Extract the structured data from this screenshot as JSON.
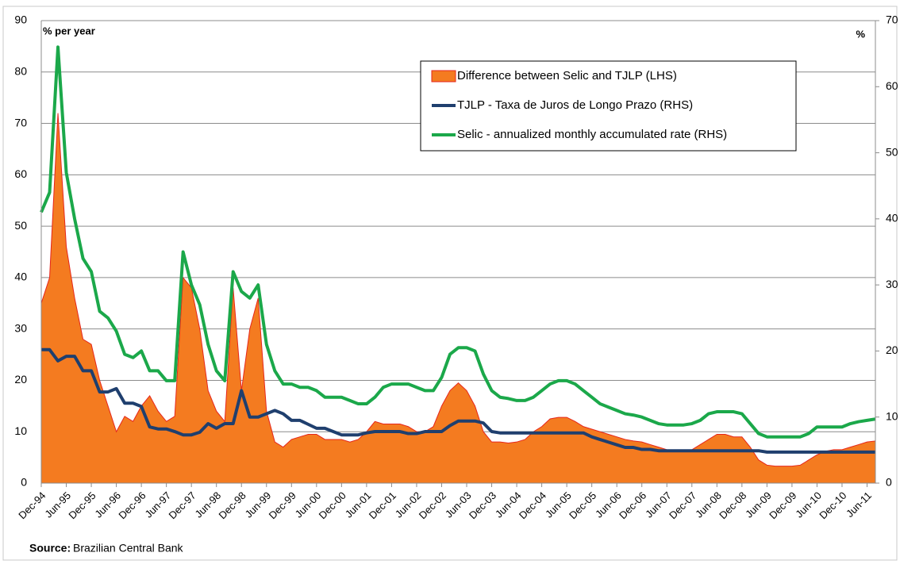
{
  "chart_data": {
    "type": "line",
    "left_axis_label": "% per year",
    "right_axis_label": "%",
    "source_label": "Source:",
    "source": "Brazilian Central Bank",
    "categories": [
      "Dec-94",
      null,
      null,
      "Jun-95",
      null,
      null,
      "Dec-95",
      null,
      null,
      "Jun-96",
      null,
      null,
      "Dec-96",
      null,
      null,
      "Jun-97",
      null,
      null,
      "Dec-97",
      null,
      null,
      "Jun-98",
      null,
      null,
      "Dec-98",
      null,
      null,
      "Jun-99",
      null,
      null,
      "Dec-99",
      null,
      null,
      "Jun-00",
      null,
      null,
      "Dec-00",
      null,
      null,
      "Jun-01",
      null,
      null,
      "Dec-01",
      null,
      null,
      "Jun-02",
      null,
      null,
      "Dec-02",
      null,
      null,
      "Jun-03",
      null,
      null,
      "Dec-03",
      null,
      null,
      "Jun-04",
      null,
      null,
      "Dec-04",
      null,
      null,
      "Jun-05",
      null,
      null,
      "Dec-05",
      null,
      null,
      "Jun-06",
      null,
      null,
      "Dec-06",
      null,
      null,
      "Jun-07",
      null,
      null,
      "Dec-07",
      null,
      null,
      "Jun-08",
      null,
      null,
      "Dec-08",
      null,
      null,
      "Jun-09",
      null,
      null,
      "Dec-09",
      null,
      null,
      "Jun-10",
      null,
      null,
      "Dec-10",
      null,
      null,
      "Jun-11",
      null
    ],
    "series": [
      {
        "name": "Difference between Selic and TJLP (LHS)",
        "type": "area",
        "color": "#f47b20",
        "edge": "#e5261c",
        "values": [
          35,
          40,
          72,
          46,
          36,
          28,
          27,
          20,
          15,
          10,
          13,
          12,
          15,
          17,
          14,
          12,
          13,
          40,
          38,
          30,
          18,
          14,
          12,
          38,
          18,
          30,
          36,
          14,
          8,
          7,
          8.5,
          9,
          9.5,
          9.5,
          8.5,
          8.5,
          8.5,
          8,
          8.5,
          10,
          12,
          11.5,
          11.5,
          11.5,
          11,
          10,
          10,
          11,
          15,
          18,
          19.5,
          18,
          15,
          10,
          8,
          8,
          7.8,
          8,
          8.5,
          10,
          11,
          12.5,
          12.8,
          12.8,
          12,
          11,
          10.5,
          10,
          9.5,
          9,
          8.5,
          8.2,
          8,
          7.5,
          7,
          6.5,
          6.2,
          6.2,
          6.5,
          7.5,
          8.5,
          9.5,
          9.5,
          9,
          9,
          7,
          4.5,
          3.5,
          3.3,
          3.3,
          3.3,
          3.5,
          4.5,
          5.5,
          6.2,
          6.5,
          6.5,
          7,
          7.5,
          8,
          8.2
        ]
      },
      {
        "name": "TJLP - Taxa de Juros de Longo Prazo (RHS)",
        "type": "line",
        "axis": "y2",
        "color": "#1f3f6e",
        "values": [
          20.2,
          20.2,
          18.5,
          19.2,
          19.2,
          17,
          17,
          13.8,
          13.8,
          14.3,
          12.1,
          12.1,
          11.6,
          8.5,
          8.2,
          8.2,
          7.8,
          7.3,
          7.3,
          7.7,
          9,
          8.3,
          9,
          9,
          14,
          10,
          10,
          10.5,
          11,
          10.5,
          9.5,
          9.5,
          8.9,
          8.3,
          8.3,
          7.8,
          7.3,
          7.3,
          7.3,
          7.6,
          7.8,
          7.8,
          7.8,
          7.8,
          7.5,
          7.5,
          7.8,
          7.8,
          7.8,
          8.7,
          9.4,
          9.4,
          9.4,
          9.1,
          7.8,
          7.6,
          7.6,
          7.6,
          7.6,
          7.6,
          7.6,
          7.6,
          7.6,
          7.6,
          7.6,
          7.6,
          7.0,
          6.6,
          6.2,
          5.8,
          5.4,
          5.4,
          5.1,
          5.1,
          4.9,
          4.9,
          4.9,
          4.9,
          4.9,
          4.9,
          4.9,
          4.9,
          4.9,
          4.9,
          4.9,
          4.9,
          4.9,
          4.7,
          4.7,
          4.7,
          4.7,
          4.7,
          4.7,
          4.7,
          4.7,
          4.7,
          4.7,
          4.7,
          4.7,
          4.7,
          4.7
        ]
      },
      {
        "name": "Selic - annualized monthly accumulated rate (RHS)",
        "type": "line",
        "axis": "y2",
        "color": "#1ba84a",
        "values": [
          41,
          44,
          66,
          47,
          40,
          34,
          32,
          26,
          25,
          23,
          19.5,
          19,
          20,
          17,
          17,
          15.5,
          15.5,
          35,
          30,
          27,
          21,
          17,
          15.5,
          32,
          29,
          28,
          30,
          21,
          17,
          15,
          15,
          14.5,
          14.5,
          14,
          13,
          13,
          13,
          12.5,
          12,
          12,
          13,
          14.5,
          15,
          15,
          15,
          14.5,
          14,
          14,
          16,
          19.5,
          20.5,
          20.5,
          20,
          16.5,
          14,
          13,
          12.8,
          12.5,
          12.5,
          13,
          14,
          15,
          15.5,
          15.5,
          15,
          14,
          13,
          12,
          11.5,
          11,
          10.5,
          10.3,
          10,
          9.5,
          9,
          8.8,
          8.8,
          8.8,
          9,
          9.5,
          10.5,
          10.8,
          10.8,
          10.8,
          10.5,
          9,
          7.5,
          7,
          7,
          7,
          7,
          7,
          7.5,
          8.5,
          8.5,
          8.5,
          8.5,
          9,
          9.3,
          9.5,
          9.7
        ]
      }
    ],
    "ylim": [
      0,
      90
    ],
    "yticks": [
      0,
      10,
      20,
      30,
      40,
      50,
      60,
      70,
      80,
      90
    ],
    "y2lim": [
      0,
      70
    ],
    "y2ticks": [
      0,
      10,
      20,
      30,
      40,
      50,
      60,
      70
    ],
    "grid": true,
    "legend": "upper-right"
  }
}
